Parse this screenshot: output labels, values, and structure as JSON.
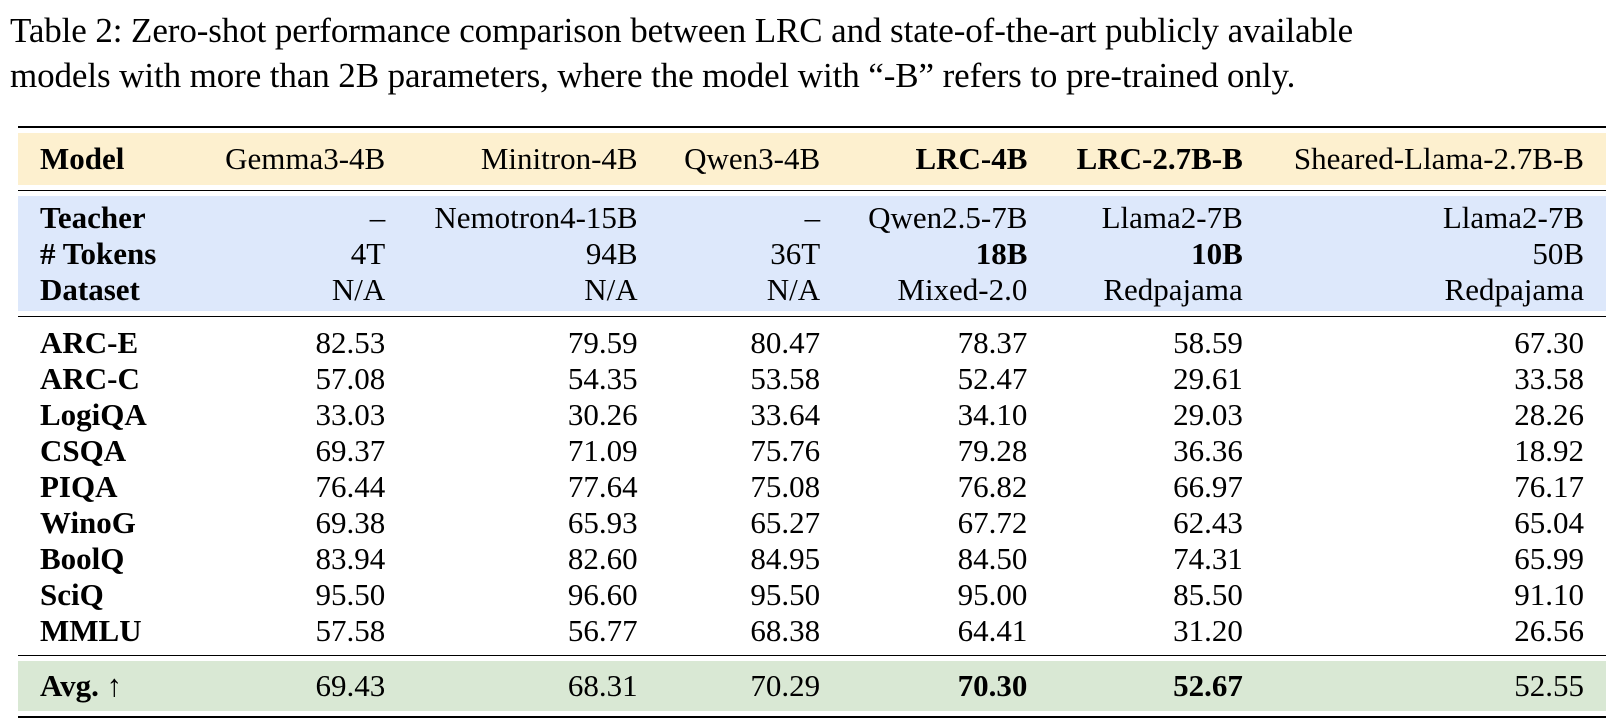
{
  "caption": {
    "line1": "Table 2: Zero-shot performance comparison between LRC and state-of-the-art publicly available",
    "line2": "models with more than 2B parameters, where the model with “-B” refers to pre-trained only."
  },
  "header": {
    "label": "Model",
    "models": [
      "Gemma3-4B",
      "Minitron-4B",
      "Qwen3-4B",
      "LRC-4B",
      "LRC-2.7B-B",
      "Sheared-Llama-2.7B-B"
    ]
  },
  "meta": [
    {
      "label": "Teacher",
      "values": [
        "–",
        "Nemotron4-15B",
        "–",
        "Qwen2.5-7B",
        "Llama2-7B",
        "Llama2-7B"
      ]
    },
    {
      "label": "# Tokens",
      "values": [
        "4T",
        "94B",
        "36T",
        "18B",
        "10B",
        "50B"
      ]
    },
    {
      "label": "Dataset",
      "values": [
        "N/A",
        "N/A",
        "N/A",
        "Mixed-2.0",
        "Redpajama",
        "Redpajama"
      ]
    }
  ],
  "rows": [
    {
      "label": "ARC-E",
      "values": [
        "82.53",
        "79.59",
        "80.47",
        "78.37",
        "58.59",
        "67.30"
      ]
    },
    {
      "label": "ARC-C",
      "values": [
        "57.08",
        "54.35",
        "53.58",
        "52.47",
        "29.61",
        "33.58"
      ]
    },
    {
      "label": "LogiQA",
      "values": [
        "33.03",
        "30.26",
        "33.64",
        "34.10",
        "29.03",
        "28.26"
      ]
    },
    {
      "label": "CSQA",
      "values": [
        "69.37",
        "71.09",
        "75.76",
        "79.28",
        "36.36",
        "18.92"
      ]
    },
    {
      "label": "PIQA",
      "values": [
        "76.44",
        "77.64",
        "75.08",
        "76.82",
        "66.97",
        "76.17"
      ]
    },
    {
      "label": "WinoG",
      "values": [
        "69.38",
        "65.93",
        "65.27",
        "67.72",
        "62.43",
        "65.04"
      ]
    },
    {
      "label": "BoolQ",
      "values": [
        "83.94",
        "82.60",
        "84.95",
        "84.50",
        "74.31",
        "65.99"
      ]
    },
    {
      "label": "SciQ",
      "values": [
        "95.50",
        "96.60",
        "95.50",
        "95.00",
        "85.50",
        "91.10"
      ]
    },
    {
      "label": "MMLU",
      "values": [
        "57.58",
        "56.77",
        "68.38",
        "64.41",
        "31.20",
        "26.56"
      ]
    }
  ],
  "average": {
    "label": "Avg. ↑",
    "values": [
      "69.43",
      "68.31",
      "70.29",
      "70.30",
      "52.67",
      "52.55"
    ]
  }
}
